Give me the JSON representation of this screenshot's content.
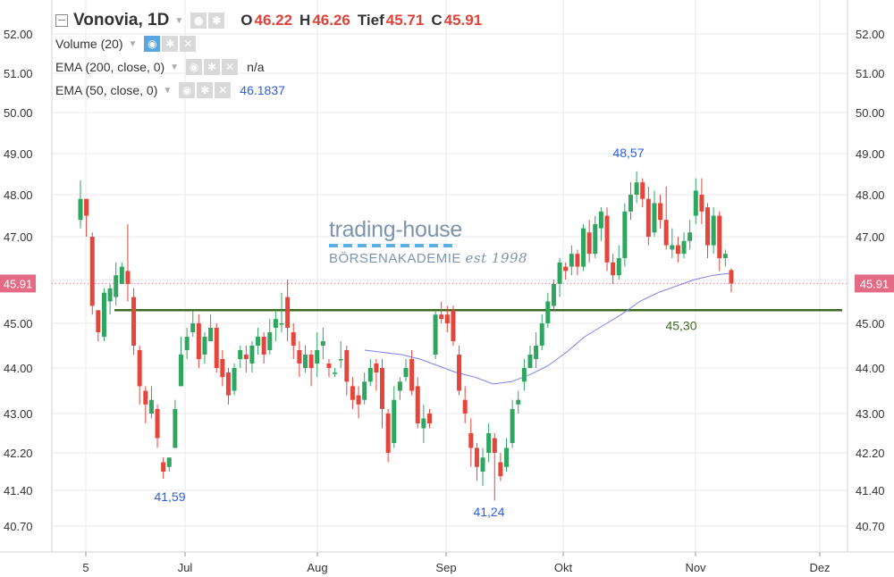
{
  "header": {
    "symbol": "Vonovia, 1D",
    "o_label": "O",
    "o_value": "46.22",
    "h_label": "H",
    "h_value": "46.26",
    "l_label": "Tief",
    "l_value": "45.71",
    "c_label": "C",
    "c_value": "45.91"
  },
  "indicators": [
    {
      "label": "Volume (20)",
      "value": ""
    },
    {
      "label": "EMA (200, close, 0)",
      "value": "n/a"
    },
    {
      "label": "EMA (50, close, 0)",
      "value": "46.1837"
    }
  ],
  "watermark": {
    "top": "trading-house",
    "bottom": "BÖRSENAKADEMIE",
    "est": "est 1998"
  },
  "colors": {
    "up": "#2ea660",
    "down": "#e5453b",
    "ema": "#7b7ff0",
    "support": "#3e6b1f",
    "grid": "#e8eaed",
    "price_tag": "#e46a86"
  },
  "chart_data": {
    "type": "candlestick",
    "y_ticks": [
      "52.00",
      "51.00",
      "50.00",
      "49.00",
      "48.00",
      "47.00",
      "46.00",
      "45.00",
      "44.00",
      "43.00",
      "42.20",
      "41.40",
      "40.70"
    ],
    "x_ticks": [
      "5",
      "Jul",
      "Aug",
      "Sep",
      "Okt",
      "Nov",
      "Dez"
    ],
    "ylim": [
      40.3,
      52.4
    ],
    "last_price": "45.91",
    "support": {
      "value": 45.3,
      "label": "45,30"
    },
    "annotations": [
      {
        "text": "48,57",
        "value": 48.57
      },
      {
        "text": "41,59",
        "value": 41.59
      },
      {
        "text": "41,24",
        "value": 41.24
      }
    ],
    "ema50": [
      [
        44.4,
        44.35,
        44.3,
        44.2,
        44.05,
        43.9,
        43.8,
        43.65,
        43.7,
        43.85,
        44.05,
        44.35,
        44.7,
        44.95,
        45.2,
        45.5,
        45.7,
        45.85,
        46.0,
        46.1,
        46.15
      ]
    ],
    "candles": [
      [
        47.4,
        47.9,
        48.35,
        47.2
      ],
      [
        47.9,
        47.5,
        47.9,
        47.0
      ],
      [
        47.0,
        45.4,
        47.1,
        45.2
      ],
      [
        45.3,
        44.8,
        45.3,
        44.6
      ],
      [
        44.7,
        45.7,
        45.8,
        44.6
      ],
      [
        45.5,
        45.8,
        45.9,
        45.2
      ],
      [
        45.6,
        46.1,
        46.4,
        45.4
      ],
      [
        45.9,
        46.3,
        46.4,
        45.9
      ],
      [
        46.2,
        45.9,
        47.3,
        45.5
      ],
      [
        45.6,
        44.5,
        45.8,
        44.3
      ],
      [
        44.4,
        43.6,
        44.5,
        43.2
      ],
      [
        43.5,
        43.2,
        43.6,
        42.8
      ],
      [
        43.0,
        43.3,
        43.6,
        42.9
      ],
      [
        43.1,
        42.5,
        43.2,
        42.3
      ],
      [
        42.0,
        41.8,
        42.1,
        41.65
      ],
      [
        41.9,
        42.1,
        42.1,
        41.8
      ],
      [
        42.3,
        43.1,
        43.3,
        42.3
      ],
      [
        43.6,
        44.3,
        44.7,
        43.6
      ],
      [
        44.4,
        44.7,
        44.9,
        44.2
      ],
      [
        44.8,
        45.0,
        45.3,
        44.7
      ],
      [
        45.0,
        44.2,
        45.2,
        44.0
      ],
      [
        44.3,
        44.7,
        44.8,
        44.1
      ],
      [
        44.6,
        44.9,
        45.2,
        44.6
      ],
      [
        44.9,
        44.0,
        45.0,
        43.9
      ],
      [
        44.2,
        43.8,
        44.4,
        43.6
      ],
      [
        43.9,
        43.4,
        44.0,
        43.2
      ],
      [
        43.5,
        44.0,
        44.1,
        43.4
      ],
      [
        44.2,
        44.4,
        44.5,
        44.0
      ],
      [
        44.3,
        44.2,
        44.5,
        43.9
      ],
      [
        44.1,
        44.5,
        44.6,
        43.9
      ],
      [
        44.5,
        44.7,
        44.9,
        44.3
      ],
      [
        44.7,
        44.3,
        44.8,
        44.1
      ],
      [
        44.4,
        44.8,
        45.1,
        44.3
      ],
      [
        44.9,
        45.1,
        45.3,
        44.6
      ],
      [
        45.0,
        45.0,
        45.7,
        44.8
      ],
      [
        45.6,
        44.9,
        46.0,
        44.6
      ],
      [
        44.8,
        44.5,
        45.0,
        44.2
      ],
      [
        44.4,
        44.1,
        44.6,
        43.8
      ],
      [
        44.0,
        44.3,
        44.5,
        43.9
      ],
      [
        44.3,
        44.0,
        44.4,
        43.6
      ],
      [
        44.1,
        44.4,
        44.8,
        43.8
      ],
      [
        44.5,
        44.6,
        44.9,
        44.2
      ],
      [
        44.1,
        44.0,
        44.2,
        43.8
      ],
      [
        43.9,
        43.9,
        44.0,
        43.8
      ],
      [
        44.2,
        44.2,
        44.6,
        44.0
      ],
      [
        44.4,
        43.7,
        44.5,
        43.4
      ],
      [
        43.6,
        43.3,
        43.8,
        43.1
      ],
      [
        43.4,
        43.2,
        43.6,
        42.9
      ],
      [
        43.3,
        43.7,
        43.9,
        43.2
      ],
      [
        43.7,
        44.0,
        44.2,
        43.6
      ],
      [
        44.1,
        43.9,
        44.2,
        43.5
      ],
      [
        44.0,
        43.1,
        44.2,
        42.7
      ],
      [
        43.0,
        42.2,
        43.1,
        42.0
      ],
      [
        42.4,
        43.3,
        43.6,
        42.3
      ],
      [
        43.5,
        43.7,
        43.8,
        43.3
      ],
      [
        43.8,
        44.0,
        44.2,
        43.7
      ],
      [
        44.2,
        43.5,
        44.4,
        43.4
      ],
      [
        43.6,
        42.8,
        43.8,
        42.7
      ],
      [
        42.7,
        42.9,
        43.2,
        42.4
      ],
      [
        43.0,
        42.8,
        43.1,
        42.7
      ],
      [
        44.3,
        45.2,
        45.3,
        44.2
      ],
      [
        45.2,
        45.1,
        45.5,
        45.0
      ],
      [
        45.2,
        45.0,
        45.4,
        44.8
      ],
      [
        45.3,
        44.6,
        45.4,
        44.5
      ],
      [
        44.3,
        43.5,
        44.5,
        43.4
      ],
      [
        43.3,
        43.0,
        43.6,
        42.8
      ],
      [
        42.6,
        42.3,
        42.9,
        41.9
      ],
      [
        42.3,
        41.9,
        42.4,
        41.6
      ],
      [
        41.8,
        42.1,
        42.3,
        41.5
      ],
      [
        42.2,
        42.6,
        42.8,
        42.0
      ],
      [
        42.5,
        42.2,
        42.6,
        41.2
      ],
      [
        42.0,
        41.7,
        42.2,
        41.6
      ],
      [
        41.9,
        42.3,
        42.5,
        41.8
      ],
      [
        42.4,
        43.1,
        43.3,
        42.3
      ],
      [
        43.2,
        43.3,
        43.5,
        43.0
      ],
      [
        43.7,
        44.0,
        44.2,
        43.5
      ],
      [
        44.0,
        44.3,
        44.5,
        44.0
      ],
      [
        44.2,
        44.5,
        44.8,
        44.0
      ],
      [
        44.5,
        45.0,
        45.2,
        44.4
      ],
      [
        45.0,
        45.5,
        45.7,
        44.9
      ],
      [
        45.4,
        45.9,
        46.0,
        45.3
      ],
      [
        45.9,
        46.4,
        46.5,
        45.6
      ],
      [
        46.3,
        46.2,
        46.4,
        46.0
      ],
      [
        46.3,
        46.6,
        46.8,
        46.1
      ],
      [
        46.6,
        46.3,
        46.7,
        46.1
      ],
      [
        46.3,
        47.2,
        47.3,
        46.2
      ],
      [
        47.1,
        46.6,
        47.4,
        46.4
      ],
      [
        46.6,
        47.3,
        47.5,
        46.5
      ],
      [
        47.2,
        47.6,
        47.7,
        46.9
      ],
      [
        47.5,
        46.4,
        47.7,
        46.2
      ],
      [
        46.4,
        46.1,
        46.6,
        45.9
      ],
      [
        46.1,
        46.5,
        46.8,
        46.0
      ],
      [
        46.5,
        47.6,
        47.8,
        46.3
      ],
      [
        47.6,
        48.0,
        48.3,
        47.4
      ],
      [
        48.0,
        48.3,
        48.57,
        47.8
      ],
      [
        48.3,
        47.9,
        48.4,
        47.7
      ],
      [
        47.9,
        47.0,
        48.2,
        46.8
      ],
      [
        47.1,
        47.8,
        48.1,
        47.0
      ],
      [
        47.8,
        47.4,
        48.0,
        47.2
      ],
      [
        47.4,
        46.8,
        48.2,
        46.7
      ],
      [
        46.7,
        46.8,
        47.2,
        46.5
      ],
      [
        46.8,
        46.6,
        47.0,
        46.4
      ],
      [
        46.6,
        46.9,
        47.1,
        46.5
      ],
      [
        46.9,
        47.1,
        47.4,
        46.7
      ],
      [
        47.5,
        48.1,
        48.4,
        47.3
      ],
      [
        48.0,
        47.6,
        48.4,
        47.3
      ],
      [
        47.7,
        46.8,
        47.8,
        46.5
      ],
      [
        46.8,
        47.5,
        47.7,
        46.6
      ],
      [
        47.5,
        46.5,
        47.6,
        46.2
      ],
      [
        46.5,
        46.6,
        46.7,
        46.3
      ],
      [
        46.22,
        45.91,
        46.26,
        45.71
      ]
    ]
  }
}
